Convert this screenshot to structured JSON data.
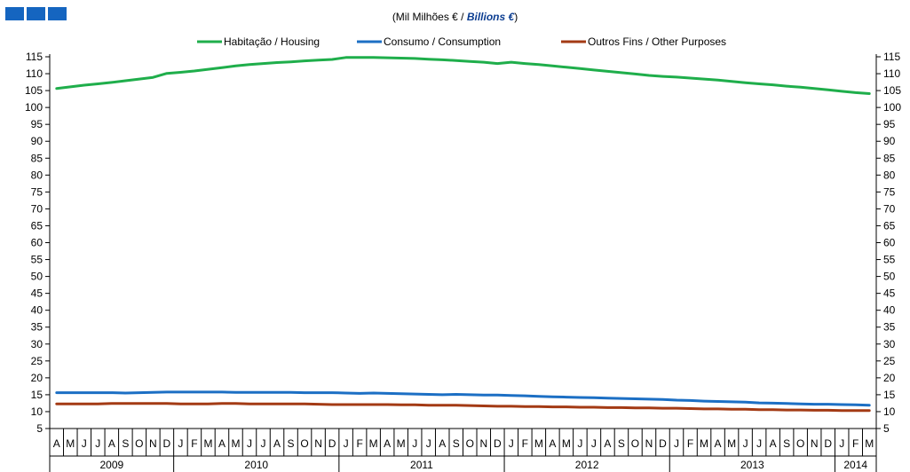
{
  "subtitle": {
    "unit_pt": "(Mil Milhões € / ",
    "unit_en": "Billions €",
    "unit_close": ")"
  },
  "colors": {
    "housing": "#1fae4b",
    "consumption": "#1c6fc4",
    "other": "#a33a14",
    "axis": "#000000",
    "logo": "#1565c0"
  },
  "chart_data": {
    "type": "line",
    "title": "",
    "subtitle": "(Mil Milhões € / Billions €)",
    "xlabel": "",
    "ylabel": "",
    "ylim": [
      5,
      115
    ],
    "y_ticks": [
      5,
      10,
      15,
      20,
      25,
      30,
      35,
      40,
      45,
      50,
      55,
      60,
      65,
      70,
      75,
      80,
      85,
      90,
      95,
      100,
      105,
      110,
      115
    ],
    "y_axis_both_sides": true,
    "grid": false,
    "legend_position": "top",
    "month_labels": [
      "A",
      "M",
      "J",
      "J",
      "A",
      "S",
      "O",
      "N",
      "D",
      "J",
      "F",
      "M",
      "A",
      "M",
      "J",
      "J",
      "A",
      "S",
      "O",
      "N",
      "D",
      "J",
      "F",
      "M",
      "A",
      "M",
      "J",
      "J",
      "A",
      "S",
      "O",
      "N",
      "D",
      "J",
      "F",
      "M",
      "A",
      "M",
      "J",
      "J",
      "A",
      "S",
      "O",
      "N",
      "D",
      "J",
      "F",
      "M",
      "A",
      "M",
      "J",
      "J",
      "A",
      "S",
      "O",
      "N",
      "D",
      "J",
      "F",
      "M"
    ],
    "years": [
      {
        "label": "2009",
        "start": 0,
        "count": 9
      },
      {
        "label": "2010",
        "start": 9,
        "count": 12
      },
      {
        "label": "2011",
        "start": 21,
        "count": 12
      },
      {
        "label": "2012",
        "start": 33,
        "count": 12
      },
      {
        "label": "2013",
        "start": 45,
        "count": 12
      },
      {
        "label": "2014",
        "start": 57,
        "count": 3
      }
    ],
    "series": [
      {
        "name": "Habitação / Housing",
        "color": "#1fae4b",
        "values": [
          105.6,
          106.1,
          106.6,
          107.0,
          107.4,
          107.9,
          108.4,
          108.9,
          110.1,
          110.4,
          110.8,
          111.3,
          111.8,
          112.3,
          112.7,
          113.0,
          113.3,
          113.5,
          113.8,
          114.0,
          114.2,
          114.8,
          114.8,
          114.8,
          114.7,
          114.6,
          114.5,
          114.3,
          114.1,
          113.9,
          113.6,
          113.4,
          113.0,
          113.4,
          113.0,
          112.7,
          112.3,
          111.9,
          111.5,
          111.1,
          110.7,
          110.3,
          109.9,
          109.5,
          109.2,
          109.0,
          108.7,
          108.4,
          108.1,
          107.7,
          107.3,
          107.0,
          106.7,
          106.3,
          106.0,
          105.6,
          105.2,
          104.8,
          104.4,
          104.1
        ]
      },
      {
        "name": "Consumo / Consumption",
        "color": "#1c6fc4",
        "values": [
          15.6,
          15.6,
          15.6,
          15.6,
          15.6,
          15.5,
          15.6,
          15.7,
          15.8,
          15.8,
          15.8,
          15.8,
          15.8,
          15.7,
          15.7,
          15.7,
          15.7,
          15.7,
          15.6,
          15.6,
          15.6,
          15.5,
          15.4,
          15.5,
          15.4,
          15.3,
          15.2,
          15.1,
          15.0,
          15.1,
          15.0,
          14.9,
          14.9,
          14.8,
          14.7,
          14.5,
          14.4,
          14.3,
          14.2,
          14.1,
          14.0,
          13.9,
          13.8,
          13.7,
          13.6,
          13.4,
          13.3,
          13.1,
          13.0,
          12.9,
          12.8,
          12.6,
          12.5,
          12.4,
          12.3,
          12.2,
          12.2,
          12.1,
          12.0,
          11.9
        ]
      },
      {
        "name": "Outros Fins / Other Purposes",
        "color": "#a33a14",
        "values": [
          12.3,
          12.3,
          12.3,
          12.3,
          12.4,
          12.4,
          12.4,
          12.4,
          12.4,
          12.3,
          12.3,
          12.3,
          12.4,
          12.4,
          12.3,
          12.3,
          12.3,
          12.3,
          12.3,
          12.2,
          12.1,
          12.1,
          12.1,
          12.1,
          12.1,
          12.0,
          12.0,
          11.9,
          11.9,
          11.9,
          11.8,
          11.7,
          11.6,
          11.6,
          11.5,
          11.5,
          11.4,
          11.4,
          11.3,
          11.3,
          11.2,
          11.2,
          11.1,
          11.1,
          11.0,
          11.0,
          10.9,
          10.8,
          10.8,
          10.7,
          10.7,
          10.6,
          10.6,
          10.5,
          10.5,
          10.4,
          10.4,
          10.3,
          10.3,
          10.3
        ]
      }
    ]
  }
}
